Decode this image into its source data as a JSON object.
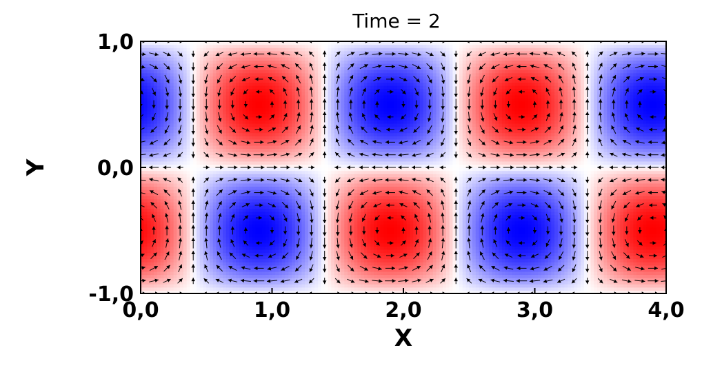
{
  "chart_data": {
    "type": "heatmap",
    "title": "Time = 2",
    "xlabel": "X",
    "ylabel": "Y",
    "xlim": [
      0,
      4
    ],
    "ylim": [
      -1,
      1
    ],
    "x_ticks": [
      0,
      1,
      2,
      3,
      4
    ],
    "x_tick_labels": [
      "0,0",
      "1,0",
      "2,0",
      "3,0",
      "4,0"
    ],
    "y_ticks": [
      -1,
      0,
      1
    ],
    "y_tick_labels": [
      "-1,0",
      "0,0",
      "1,0"
    ],
    "colors": {
      "positive": "#ff0000",
      "negative": "#0000ff",
      "zero": "#ffffff"
    },
    "vortex_centers": [
      {
        "x": 0.9,
        "y": 0.5,
        "sign": 1
      },
      {
        "x": 1.9,
        "y": 0.5,
        "sign": -1
      },
      {
        "x": 2.9,
        "y": 0.5,
        "sign": 1
      },
      {
        "x": 3.9,
        "y": 0.5,
        "sign": -1
      },
      {
        "x": 0.9,
        "y": -0.5,
        "sign": -1
      },
      {
        "x": 1.9,
        "y": -0.5,
        "sign": 1
      },
      {
        "x": 2.9,
        "y": -0.5,
        "sign": -1
      },
      {
        "x": 3.9,
        "y": -0.5,
        "sign": 1
      }
    ],
    "overlay": "velocity vector glyphs (black arrows)",
    "grid": false,
    "legend": "none"
  }
}
